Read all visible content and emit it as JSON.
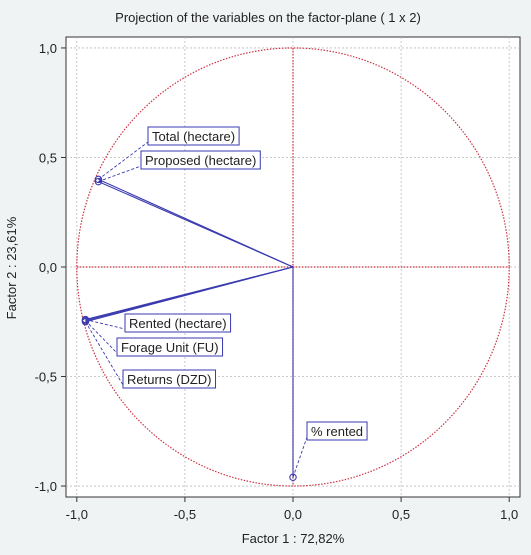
{
  "chart_data": {
    "type": "scatter",
    "title": "Projection of the variables on the factor-plane (  1 x   2)",
    "xlabel": "Factor 1 : 72,82%",
    "ylabel": "Factor 2 : 23,61%",
    "xlim": [
      -1.05,
      1.05
    ],
    "ylim": [
      -1.05,
      1.05
    ],
    "xticks": [
      "-1,0",
      "-0,5",
      "0,0",
      "0,5",
      "1,0"
    ],
    "yticks": [
      "1,0",
      "0,5",
      "0,0",
      "-0,5",
      "-1,0"
    ],
    "grid": true,
    "unit_circle": true,
    "points": [
      {
        "label": "Total (hectare)",
        "x": -0.9,
        "y": 0.4
      },
      {
        "label": "Proposed (hectare)",
        "x": -0.9,
        "y": 0.39
      },
      {
        "label": "Rented (hectare)",
        "x": -0.96,
        "y": -0.24
      },
      {
        "label": "Forage Unit (FU)",
        "x": -0.96,
        "y": -0.245
      },
      {
        "label": "Returns (DZD)",
        "x": -0.96,
        "y": -0.25
      },
      {
        "label": "% rented",
        "x": 0.0,
        "y": -0.96
      }
    ],
    "colors": {
      "background": "#f0f3f4",
      "plot_background": "#ffffff",
      "circle": "#cc3344",
      "axes_lines": "#cc3344",
      "vectors": "#3a3ab0",
      "grid": "#bbbbbb",
      "label_border": "#3a3ab0",
      "label_fill": "#ffffff"
    }
  }
}
